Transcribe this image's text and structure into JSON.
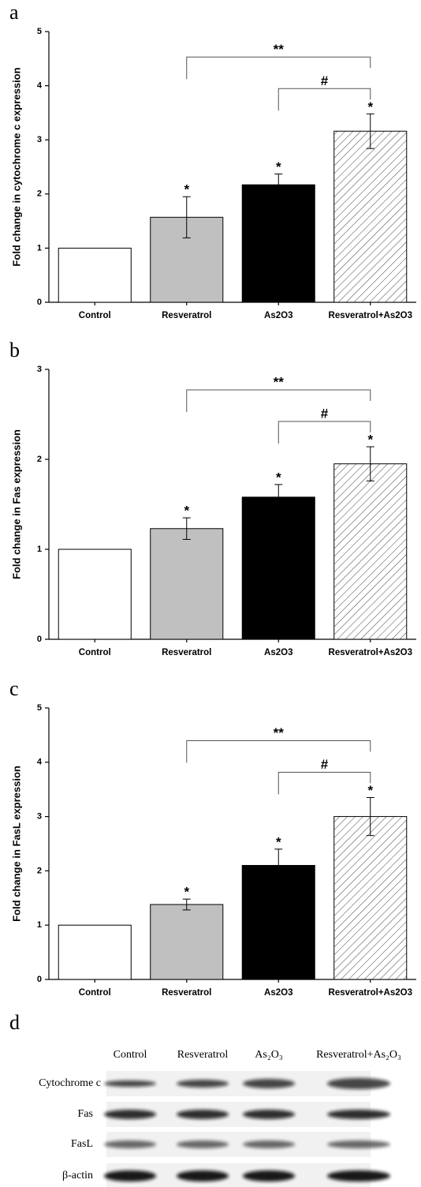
{
  "chart_data": [
    {
      "type": "bar",
      "panel_label": "a",
      "ylabel": "Fold change in cytochrome c expression",
      "categories": [
        "Control",
        "Resveratrol",
        "As2O3",
        "Resveratrol+As2O3"
      ],
      "values": [
        1.0,
        1.57,
        2.17,
        3.16
      ],
      "errors": [
        0,
        0.38,
        0.2,
        0.32
      ],
      "colors": [
        "#ffffff",
        "#c0c0c0",
        "#000000",
        "#ffffff"
      ],
      "hatch": [
        false,
        false,
        false,
        true
      ],
      "significance_labels": [
        null,
        "*",
        "*",
        "*"
      ],
      "brackets": [
        {
          "from": "Resveratrol",
          "to": "Resveratrol+As2O3",
          "label": "**"
        },
        {
          "from": "As2O3",
          "to": "Resveratrol+As2O3",
          "label": "#"
        }
      ],
      "ylim": [
        0,
        5
      ],
      "yticks": [
        0,
        1,
        2,
        3,
        4,
        5
      ]
    },
    {
      "type": "bar",
      "panel_label": "b",
      "ylabel": "Fold change in Fas expression",
      "categories": [
        "Control",
        "Resveratrol",
        "As2O3",
        "Resveratrol+As2O3"
      ],
      "values": [
        1.0,
        1.23,
        1.58,
        1.95
      ],
      "errors": [
        0,
        0.12,
        0.14,
        0.19
      ],
      "colors": [
        "#ffffff",
        "#c0c0c0",
        "#000000",
        "#ffffff"
      ],
      "hatch": [
        false,
        false,
        false,
        true
      ],
      "significance_labels": [
        null,
        "*",
        "*",
        "*"
      ],
      "brackets": [
        {
          "from": "Resveratrol",
          "to": "Resveratrol+As2O3",
          "label": "**"
        },
        {
          "from": "As2O3",
          "to": "Resveratrol+As2O3",
          "label": "#"
        }
      ],
      "ylim": [
        0,
        3
      ],
      "yticks": [
        0,
        1,
        2,
        3
      ]
    },
    {
      "type": "bar",
      "panel_label": "c",
      "ylabel": "Fold change in FasL expression",
      "categories": [
        "Control",
        "Resveratrol",
        "As2O3",
        "Resveratrol+As2O3"
      ],
      "values": [
        1.0,
        1.38,
        2.1,
        3.0
      ],
      "errors": [
        0,
        0.1,
        0.3,
        0.35
      ],
      "colors": [
        "#ffffff",
        "#c0c0c0",
        "#000000",
        "#ffffff"
      ],
      "hatch": [
        false,
        false,
        false,
        true
      ],
      "significance_labels": [
        null,
        "*",
        "*",
        "*"
      ],
      "brackets": [
        {
          "from": "Resveratrol",
          "to": "Resveratrol+As2O3",
          "label": "**"
        },
        {
          "from": "As2O3",
          "to": "Resveratrol+As2O3",
          "label": "#"
        }
      ],
      "ylim": [
        0,
        5
      ],
      "yticks": [
        0,
        1,
        2,
        3,
        4,
        5
      ]
    }
  ],
  "blot": {
    "panel_label": "d",
    "columns": [
      "Control",
      "Resveratrol",
      "As₂O₃",
      "Resveratrol+As₂O₃"
    ],
    "rows": [
      "Cytochrome c",
      "Fas",
      "FasL",
      "β-actin"
    ]
  }
}
